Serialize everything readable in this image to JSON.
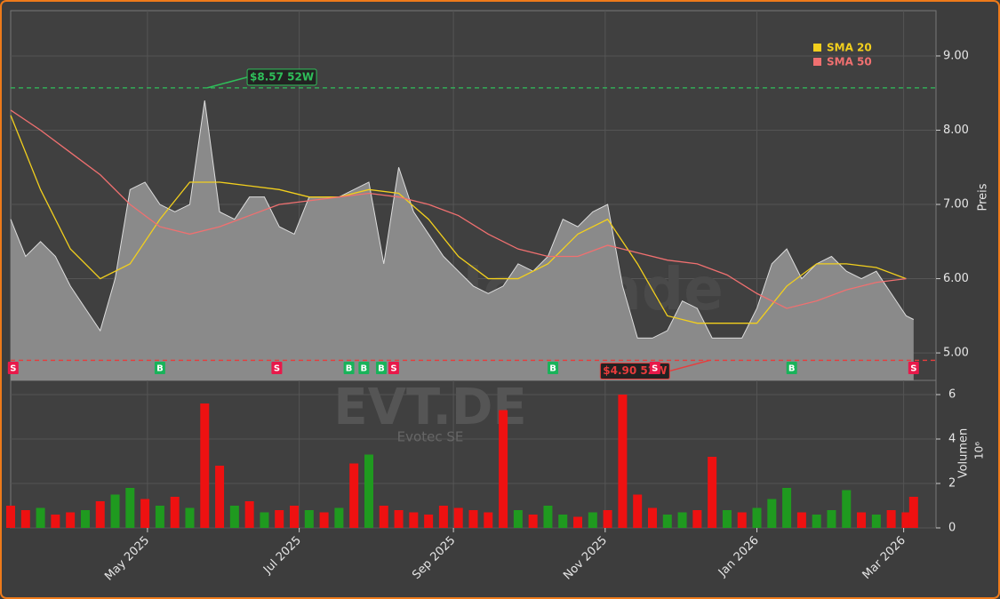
{
  "chart_data": {
    "type": "stock",
    "watermark": "forexsignale.trade",
    "ticker": "EVT.DE",
    "company": "Evotec SE",
    "xlim": [
      0,
      372
    ],
    "xticks": [
      {
        "value": 55,
        "label": "May 2025"
      },
      {
        "value": 116,
        "label": "Jul 2025"
      },
      {
        "value": 178,
        "label": "Sep 2025"
      },
      {
        "value": 239,
        "label": "Nov 2025"
      },
      {
        "value": 300,
        "label": "Jan 2026"
      },
      {
        "value": 359,
        "label": "Mar 2026"
      }
    ],
    "ylabel": "Preis",
    "ylim": [
      4.63,
      9.61
    ],
    "yticks": [
      {
        "value": 5,
        "label": "5.00"
      },
      {
        "value": 6,
        "label": "6.00"
      },
      {
        "value": 7,
        "label": "7.00"
      },
      {
        "value": 8,
        "label": "8.00"
      },
      {
        "value": 9,
        "label": "9.00"
      }
    ],
    "grid": true,
    "price": {
      "color": "#8a8a8a",
      "x": [
        0,
        6,
        12,
        18,
        24,
        30,
        36,
        42,
        48,
        54,
        60,
        66,
        72,
        78,
        84,
        90,
        96,
        102,
        108,
        114,
        120,
        126,
        132,
        138,
        144,
        150,
        156,
        162,
        168,
        174,
        180,
        186,
        192,
        198,
        204,
        210,
        216,
        222,
        228,
        234,
        240,
        246,
        252,
        258,
        264,
        270,
        276,
        282,
        288,
        294,
        300,
        306,
        312,
        318,
        324,
        330,
        336,
        342,
        348,
        354,
        360,
        363
      ],
      "values": [
        6.8,
        6.3,
        6.5,
        6.3,
        5.9,
        5.6,
        5.3,
        6.0,
        7.2,
        7.3,
        7.0,
        6.9,
        7.0,
        8.4,
        6.9,
        6.8,
        7.1,
        7.1,
        6.7,
        6.6,
        7.1,
        7.1,
        7.1,
        7.2,
        7.3,
        6.2,
        7.5,
        6.9,
        6.6,
        6.3,
        6.1,
        5.9,
        5.8,
        5.9,
        6.2,
        6.1,
        6.3,
        6.8,
        6.7,
        6.9,
        7.0,
        5.9,
        5.2,
        5.2,
        5.3,
        5.7,
        5.6,
        5.2,
        5.2,
        5.2,
        5.6,
        6.2,
        6.4,
        6.0,
        6.2,
        6.3,
        6.1,
        6.0,
        6.1,
        5.8,
        5.5,
        5.45
      ]
    },
    "sma_x": [
      0,
      12,
      24,
      36,
      48,
      60,
      72,
      84,
      96,
      108,
      120,
      132,
      144,
      156,
      168,
      180,
      192,
      204,
      216,
      228,
      240,
      252,
      264,
      276,
      288,
      300,
      312,
      324,
      336,
      348,
      360
    ],
    "series": [
      {
        "name": "SMA 20",
        "color": "#f2cf1d",
        "values": [
          8.2,
          7.2,
          6.4,
          6.0,
          6.2,
          6.8,
          7.3,
          7.3,
          7.25,
          7.2,
          7.1,
          7.1,
          7.2,
          7.15,
          6.8,
          6.3,
          6.0,
          6.0,
          6.2,
          6.6,
          6.8,
          6.2,
          5.5,
          5.4,
          5.4,
          5.4,
          5.9,
          6.2,
          6.2,
          6.15,
          6.0
        ]
      },
      {
        "name": "SMA 50",
        "color": "#f07070",
        "values": [
          8.27,
          8.0,
          7.7,
          7.4,
          7.0,
          6.7,
          6.6,
          6.7,
          6.85,
          7.0,
          7.05,
          7.1,
          7.15,
          7.1,
          7.0,
          6.85,
          6.6,
          6.4,
          6.3,
          6.3,
          6.45,
          6.35,
          6.25,
          6.2,
          6.05,
          5.8,
          5.6,
          5.7,
          5.85,
          5.95,
          6.0
        ]
      }
    ],
    "high_52w": {
      "value": 8.57,
      "label": "$8.57 52W",
      "color": "#2fbf5a",
      "x": 79
    },
    "low_52w": {
      "value": 4.9,
      "label": "$4.90 52W",
      "color": "#e83c3c",
      "x": 281
    },
    "signals": [
      {
        "x": 1,
        "label": "S"
      },
      {
        "x": 60,
        "label": "B"
      },
      {
        "x": 107,
        "label": "S"
      },
      {
        "x": 136,
        "label": "B"
      },
      {
        "x": 142,
        "label": "B"
      },
      {
        "x": 149,
        "label": "B"
      },
      {
        "x": 154,
        "label": "S"
      },
      {
        "x": 218,
        "label": "B"
      },
      {
        "x": 259,
        "label": "S"
      },
      {
        "x": 314,
        "label": "B"
      },
      {
        "x": 363,
        "label": "S"
      }
    ],
    "buy_color": "#19b35a",
    "sell_color": "#e8194a",
    "volume": {
      "label": "Volumen",
      "exponent": "10⁶",
      "ylim": [
        0,
        6.64
      ],
      "yticks": [
        0,
        2,
        4,
        6
      ],
      "up_color": "#1f9a1f",
      "down_color": "#ee1111",
      "values": [
        1.0,
        0.8,
        0.9,
        0.6,
        0.7,
        0.8,
        1.2,
        1.5,
        1.8,
        1.3,
        1.0,
        1.4,
        0.9,
        5.6,
        2.8,
        1.0,
        1.2,
        0.7,
        0.8,
        1.0,
        0.8,
        0.7,
        0.9,
        2.9,
        3.3,
        1.0,
        0.8,
        0.7,
        0.6,
        1.0,
        0.9,
        0.8,
        0.7,
        5.3,
        0.8,
        0.6,
        1.0,
        0.6,
        0.5,
        0.7,
        0.8,
        6.0,
        1.5,
        0.9,
        0.6,
        0.7,
        0.8,
        3.2,
        0.8,
        0.7,
        0.9,
        1.3,
        1.8,
        0.7,
        0.6,
        0.8,
        1.7,
        0.7,
        0.6,
        0.8,
        0.7,
        1.4
      ],
      "directions": [
        "down",
        "down",
        "up",
        "down",
        "down",
        "up",
        "down",
        "up",
        "up",
        "down",
        "up",
        "down",
        "up",
        "down",
        "down",
        "up",
        "down",
        "up",
        "down",
        "down",
        "up",
        "down",
        "up",
        "down",
        "up",
        "down",
        "down",
        "down",
        "down",
        "down",
        "down",
        "down",
        "down",
        "down",
        "up",
        "down",
        "up",
        "up",
        "down",
        "up",
        "down",
        "down",
        "down",
        "down",
        "up",
        "up",
        "down",
        "down",
        "up",
        "down",
        "up",
        "up",
        "up",
        "down",
        "up",
        "up",
        "up",
        "down",
        "up",
        "down",
        "down",
        "down"
      ]
    }
  }
}
